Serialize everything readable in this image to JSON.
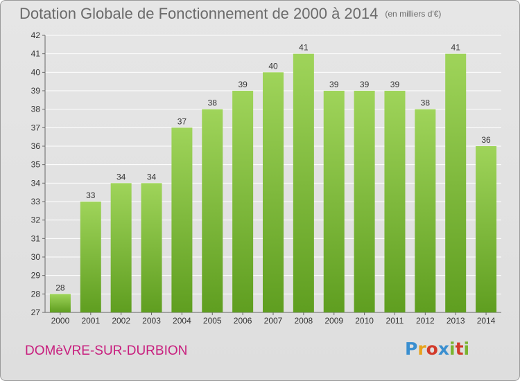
{
  "header": {
    "title": "Dotation Globale de Fonctionnement de 2000 à 2014",
    "unit": "(en milliers d'€)"
  },
  "footer": {
    "town": "DOMèVRE-SUR-DURBION",
    "logo_letters": [
      "P",
      "r",
      "o",
      "x",
      "i",
      "t",
      "i"
    ],
    "logo_colors": [
      "#3a8fd0",
      "#e8a21b",
      "#d23a2a",
      "#3a8fd0",
      "#7ab32e",
      "#d23a2a",
      "#7ab32e"
    ]
  },
  "colors": {
    "bar": "#7cc039",
    "bar_light": "#9fd45a",
    "bar_dark": "#5f9e20",
    "grid": "#ffffff"
  },
  "chart_data": {
    "type": "bar",
    "title": "Dotation Globale de Fonctionnement de 2000 à 2014",
    "subtitle": "(en milliers d'€)",
    "categories": [
      "2000",
      "2001",
      "2002",
      "2003",
      "2004",
      "2005",
      "2006",
      "2007",
      "2008",
      "2009",
      "2010",
      "2011",
      "2012",
      "2013",
      "2014"
    ],
    "values": [
      28,
      33,
      34,
      34,
      37,
      38,
      39,
      40,
      41,
      39,
      39,
      39,
      38,
      41,
      36
    ],
    "ylim": [
      27,
      42
    ],
    "yticks": [
      27,
      28,
      29,
      30,
      31,
      32,
      33,
      34,
      35,
      36,
      37,
      38,
      39,
      40,
      41,
      42
    ],
    "grid": true,
    "xlabel": "",
    "ylabel": ""
  }
}
